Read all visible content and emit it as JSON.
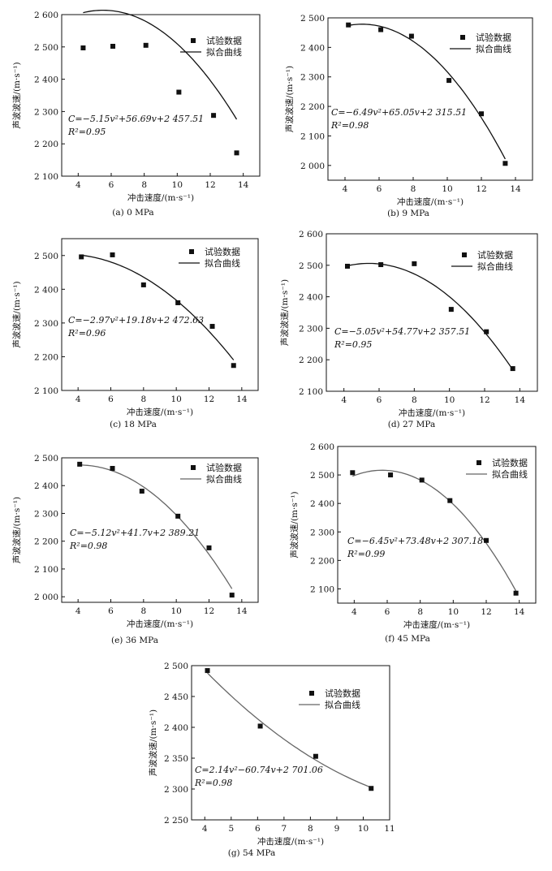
{
  "chart_data": [
    {
      "type": "scatter",
      "caption": "(a) 0 MPa",
      "xlabel": "冲击速度/(m·s⁻¹)",
      "ylabel": "声波波速/(m·s⁻¹)",
      "xlim": [
        3,
        15
      ],
      "ylim": [
        2100,
        2600
      ],
      "xticks": [
        4,
        6,
        8,
        10,
        12,
        14
      ],
      "xtick_labels": [
        "4",
        "6",
        "8",
        "10",
        "12",
        "14"
      ],
      "yticks": [
        2100,
        2200,
        2300,
        2400,
        2500,
        2600
      ],
      "ytick_labels": [
        "2 100",
        "2 200",
        "2 300",
        "2 400",
        "2 500",
        "2 600"
      ],
      "x": [
        4.3,
        6.1,
        8.1,
        10.1,
        12.2,
        13.6
      ],
      "y": [
        2497,
        2502,
        2505,
        2360,
        2288,
        2172
      ],
      "fit": {
        "a": -5.15,
        "b": 56.69,
        "c": 2457.51,
        "range": [
          4.3,
          13.6
        ]
      },
      "legend": [
        "试验数据",
        "拟合曲线"
      ],
      "equation": "C=−5.15v²+56.69v+2 457.51",
      "r2": "R²=0.95",
      "curve_color": "#111111"
    },
    {
      "type": "scatter",
      "caption": "(b) 9 MPa",
      "xlabel": "冲击速度/(m·s⁻¹)",
      "ylabel": "声波波速/(m·s⁻¹)",
      "xlim": [
        3,
        15
      ],
      "ylim": [
        1950,
        2500
      ],
      "xticks": [
        4,
        6,
        8,
        10,
        12,
        14
      ],
      "xtick_labels": [
        "4",
        "6",
        "8",
        "10",
        "12",
        "14"
      ],
      "yticks": [
        2000,
        2100,
        2200,
        2300,
        2400,
        2500
      ],
      "ytick_labels": [
        "2 000",
        "2 100",
        "2 200",
        "2 300",
        "2 400",
        "2 500"
      ],
      "x": [
        4.2,
        6.1,
        7.9,
        10.1,
        12.0,
        13.4
      ],
      "y": [
        2476,
        2460,
        2438,
        2288,
        2175,
        2007
      ],
      "fit": {
        "a": -6.49,
        "b": 65.05,
        "c": 2315.51,
        "range": [
          4.2,
          13.4
        ]
      },
      "legend": [
        "试验数据",
        "拟合曲线"
      ],
      "equation": "C=−6.49v²+65.05v+2 315.51",
      "r2": "R²=0.98",
      "curve_color": "#111111"
    },
    {
      "type": "scatter",
      "caption": "(c) 18 MPa",
      "xlabel": "冲击速度/(m·s⁻¹)",
      "ylabel": "声波波速/(m·s⁻¹)",
      "xlim": [
        3,
        15
      ],
      "ylim": [
        2100,
        2550
      ],
      "xticks": [
        4,
        6,
        8,
        10,
        12,
        14
      ],
      "xtick_labels": [
        "4",
        "6",
        "8",
        "10",
        "12",
        "14"
      ],
      "yticks": [
        2100,
        2200,
        2300,
        2400,
        2500
      ],
      "ytick_labels": [
        "2 100",
        "2 200",
        "2 300",
        "2 400",
        "2 500"
      ],
      "x": [
        4.2,
        6.1,
        8.0,
        10.1,
        12.2,
        13.5
      ],
      "y": [
        2496,
        2502,
        2413,
        2360,
        2290,
        2174
      ],
      "fit": {
        "a": -2.97,
        "b": 19.18,
        "c": 2472.63,
        "range": [
          4.2,
          13.5
        ]
      },
      "legend": [
        "试验数据",
        "拟合曲线"
      ],
      "equation": "C=−2.97v²+19.18v+2 472.63",
      "r2": "R²=0.96",
      "curve_color": "#111111"
    },
    {
      "type": "scatter",
      "caption": "(d) 27 MPa",
      "xlabel": "冲击速度/(m·s⁻¹)",
      "ylabel": "声波波速/(m·s⁻¹)",
      "xlim": [
        3,
        15
      ],
      "ylim": [
        2100,
        2600
      ],
      "xticks": [
        4,
        6,
        8,
        10,
        12,
        14
      ],
      "xtick_labels": [
        "4",
        "6",
        "8",
        "10",
        "12",
        "14"
      ],
      "yticks": [
        2100,
        2200,
        2300,
        2400,
        2500,
        2600
      ],
      "ytick_labels": [
        "2 100",
        "2 200",
        "2 300",
        "2 400",
        "2 500",
        "2 600"
      ],
      "x": [
        4.2,
        6.1,
        8.0,
        10.1,
        12.1,
        13.6
      ],
      "y": [
        2497,
        2502,
        2505,
        2360,
        2289,
        2172
      ],
      "fit": {
        "a": -5.05,
        "b": 54.77,
        "c": 2357.51,
        "range": [
          4.2,
          13.6
        ]
      },
      "legend": [
        "试验数据",
        "拟合曲线"
      ],
      "equation": "C=−5.05v²+54.77v+2 357.51",
      "r2": "R²=0.95",
      "curve_color": "#111111"
    },
    {
      "type": "scatter",
      "caption": "(e) 36 MPa",
      "xlabel": "冲击速度/(m·s⁻¹)",
      "ylabel": "声波波速/(m·s⁻¹)",
      "xlim": [
        3,
        15
      ],
      "ylim": [
        1980,
        2500
      ],
      "xticks": [
        4,
        6,
        8,
        10,
        12,
        14
      ],
      "xtick_labels": [
        "4",
        "6",
        "8",
        "10",
        "12",
        "14"
      ],
      "yticks": [
        2000,
        2100,
        2200,
        2300,
        2400,
        2500
      ],
      "ytick_labels": [
        "2 000",
        "2 100",
        "2 200",
        "2 300",
        "2 400",
        "2 500"
      ],
      "x": [
        4.1,
        6.1,
        7.9,
        10.1,
        12.0,
        13.4
      ],
      "y": [
        2477,
        2462,
        2380,
        2290,
        2176,
        2006
      ],
      "fit": {
        "a": -5.12,
        "b": 41.7,
        "c": 2389.21,
        "range": [
          4.1,
          13.4
        ]
      },
      "legend": [
        "试验数据",
        "拟合曲线"
      ],
      "equation": "C=−5.12v²+41.7v+2 389.21",
      "r2": "R²=0.98",
      "curve_color": "#666666"
    },
    {
      "type": "scatter",
      "caption": "(f) 45 MPa",
      "xlabel": "冲击速度/(m·s⁻¹)",
      "ylabel": "声波波速/(m·s⁻¹)",
      "xlim": [
        3,
        15
      ],
      "ylim": [
        2050,
        2600
      ],
      "xticks": [
        4,
        6,
        8,
        10,
        12,
        14
      ],
      "xtick_labels": [
        "4",
        "6",
        "8",
        "10",
        "12",
        "14"
      ],
      "yticks": [
        2100,
        2200,
        2300,
        2400,
        2500,
        2600
      ],
      "ytick_labels": [
        "2 100",
        "2 200",
        "2 300",
        "2 400",
        "2 500",
        "2 600"
      ],
      "x": [
        3.9,
        6.2,
        8.1,
        9.8,
        12.0,
        13.8
      ],
      "y": [
        2508,
        2500,
        2482,
        2410,
        2270,
        2085
      ],
      "fit": {
        "a": -6.45,
        "b": 73.48,
        "c": 2307.18,
        "range": [
          3.9,
          13.8
        ]
      },
      "legend": [
        "试验数据",
        "拟合曲线"
      ],
      "equation": "C=−6.45v²+73.48v+2 307.18",
      "r2": "R²=0.99",
      "curve_color": "#666666"
    },
    {
      "type": "scatter",
      "caption": "(g) 54 MPa",
      "xlabel": "冲击速度/(m·s⁻¹)",
      "ylabel": "声波波速/(m·s⁻¹)",
      "xlim": [
        3.5,
        11
      ],
      "ylim": [
        2250,
        2500
      ],
      "xticks": [
        4,
        5,
        6,
        7,
        8,
        9,
        10,
        11
      ],
      "xtick_labels": [
        "4",
        "5",
        "6",
        "7",
        "8",
        "9",
        "10",
        "11"
      ],
      "yticks": [
        2250,
        2300,
        2350,
        2400,
        2450,
        2500
      ],
      "ytick_labels": [
        "2 250",
        "2 300",
        "2 350",
        "2 400",
        "2 450",
        "2 500"
      ],
      "x": [
        4.1,
        6.1,
        8.2,
        10.3
      ],
      "y": [
        2492,
        2402,
        2353,
        2301
      ],
      "fit": {
        "a": 2.14,
        "b": -60.74,
        "c": 2701.06,
        "range": [
          4.1,
          10.3
        ]
      },
      "legend": [
        "试验数据",
        "拟合曲线"
      ],
      "equation": "C=2.14v²−60.74v+2 701.06",
      "r2": "R²=0.98",
      "curve_color": "#666666"
    }
  ]
}
